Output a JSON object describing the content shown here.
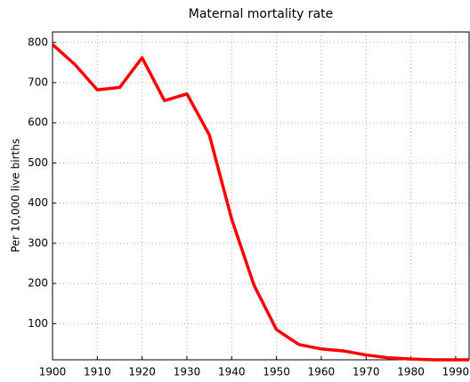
{
  "chart_data": {
    "type": "line",
    "title": "Maternal mortality rate",
    "y_label": "Per 10,000 live births",
    "x": [
      1900,
      1905,
      1910,
      1915,
      1920,
      1925,
      1930,
      1935,
      1940,
      1945,
      1950,
      1955,
      1960,
      1965,
      1970,
      1975,
      1980,
      1985,
      1990,
      1993
    ],
    "series": [
      {
        "name": "Maternal mortality rate",
        "color": "#ff0000",
        "values": [
          795,
          745,
          682,
          688,
          762,
          655,
          672,
          570,
          360,
          195,
          85,
          48,
          37,
          32,
          22,
          15,
          12,
          10,
          10,
          10
        ]
      }
    ],
    "xlim": [
      1900,
      1993
    ],
    "xticks": [
      1900,
      1910,
      1920,
      1930,
      1940,
      1950,
      1960,
      1970,
      1980,
      1990
    ],
    "ylim": [
      10,
      826
    ],
    "yticks": [
      100,
      200,
      300,
      400,
      500,
      600,
      700,
      800
    ],
    "grid": true
  }
}
